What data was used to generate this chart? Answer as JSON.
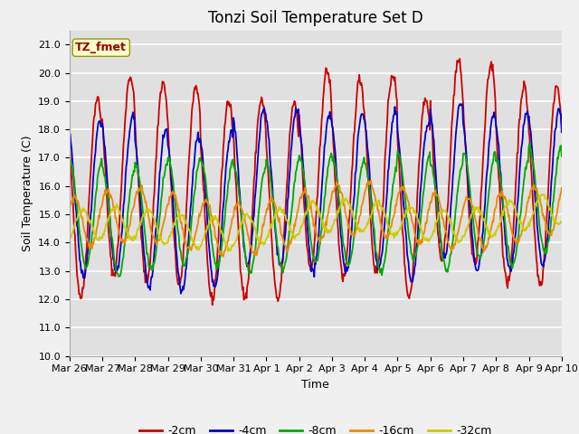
{
  "title": "Tonzi Soil Temperature Set D",
  "xlabel": "Time",
  "ylabel": "Soil Temperature (C)",
  "ylim": [
    10.0,
    21.5
  ],
  "yticks": [
    10.0,
    11.0,
    12.0,
    13.0,
    14.0,
    15.0,
    16.0,
    17.0,
    18.0,
    19.0,
    20.0,
    21.0
  ],
  "plot_bg_color": "#e0e0e0",
  "fig_bg_color": "#f0f0f0",
  "legend_label": "TZ_fmet",
  "legend_box_color": "#ffffcc",
  "legend_box_edge": "#999900",
  "series": [
    {
      "label": "-2cm",
      "color": "#cc0000",
      "lw": 1.3
    },
    {
      "label": "-4cm",
      "color": "#0000cc",
      "lw": 1.3
    },
    {
      "label": "-8cm",
      "color": "#00aa00",
      "lw": 1.3
    },
    {
      "label": "-16cm",
      "color": "#ee8800",
      "lw": 1.3
    },
    {
      "label": "-32cm",
      "color": "#cccc00",
      "lw": 1.3
    }
  ],
  "xtick_labels": [
    "Mar 26",
    "Mar 27",
    "Mar 28",
    "Mar 29",
    "Mar 30",
    "Mar 31",
    "Apr 1",
    "Apr 2",
    "Apr 3",
    "Apr 4",
    "Apr 5",
    "Apr 6",
    "Apr 7",
    "Apr 8",
    "Apr 9",
    "Apr 10"
  ],
  "title_fontsize": 12,
  "axis_label_fontsize": 9,
  "tick_fontsize": 8
}
